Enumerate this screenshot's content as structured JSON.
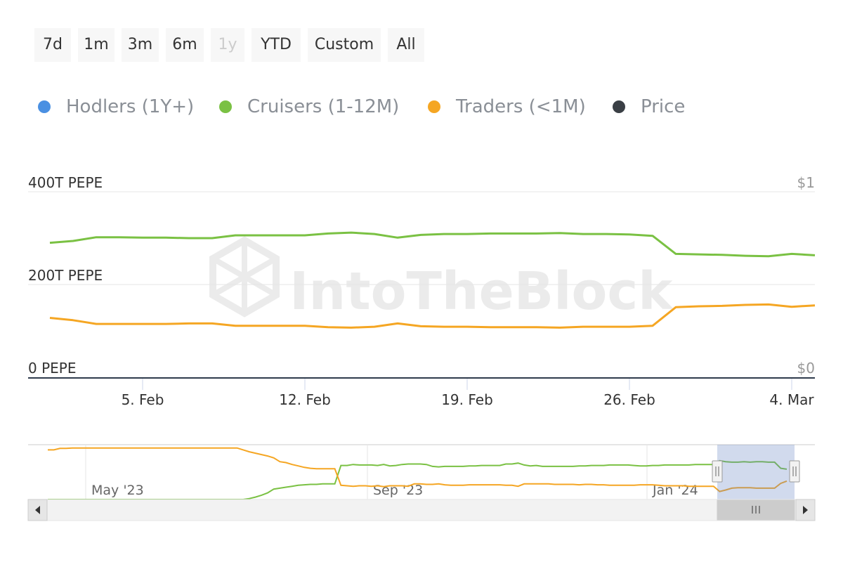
{
  "range_selector": {
    "buttons": [
      {
        "label": "7d",
        "disabled": false
      },
      {
        "label": "1m",
        "disabled": false
      },
      {
        "label": "3m",
        "disabled": false
      },
      {
        "label": "6m",
        "disabled": false
      },
      {
        "label": "1y",
        "disabled": true
      },
      {
        "label": "YTD",
        "disabled": false
      },
      {
        "label": "Custom",
        "disabled": false
      },
      {
        "label": "All",
        "disabled": false
      }
    ]
  },
  "legend": {
    "items": [
      {
        "label": "Hodlers (1Y+)",
        "color": "#4a90e2"
      },
      {
        "label": "Cruisers (1-12M)",
        "color": "#7ac143"
      },
      {
        "label": "Traders (<1M)",
        "color": "#f5a623"
      },
      {
        "label": "Price",
        "color": "#3a3f45"
      }
    ]
  },
  "watermark": "IntoTheBlock",
  "chart_data": {
    "type": "line",
    "x_ticks": [
      "5. Feb",
      "12. Feb",
      "19. Feb",
      "26. Feb",
      "4. Mar"
    ],
    "y_left_ticks": [
      "0 PEPE",
      "200T PEPE",
      "400T PEPE"
    ],
    "y_left_range": [
      0,
      400
    ],
    "y_right_ticks": [
      "$0",
      "$1"
    ],
    "grid": true,
    "series": [
      {
        "name": "Cruisers (1-12M)",
        "color": "#7ac143",
        "x": [
          "2024-02-01",
          "2024-02-02",
          "2024-02-03",
          "2024-02-04",
          "2024-02-05",
          "2024-02-06",
          "2024-02-07",
          "2024-02-08",
          "2024-02-09",
          "2024-02-10",
          "2024-02-11",
          "2024-02-12",
          "2024-02-13",
          "2024-02-14",
          "2024-02-15",
          "2024-02-16",
          "2024-02-17",
          "2024-02-18",
          "2024-02-19",
          "2024-02-20",
          "2024-02-21",
          "2024-02-22",
          "2024-02-23",
          "2024-02-24",
          "2024-02-25",
          "2024-02-26",
          "2024-02-27",
          "2024-02-28",
          "2024-02-29",
          "2024-03-01",
          "2024-03-02",
          "2024-03-03",
          "2024-03-04",
          "2024-03-05"
        ],
        "values": [
          290,
          294,
          302,
          302,
          301,
          301,
          300,
          300,
          306,
          306,
          306,
          306,
          310,
          312,
          309,
          301,
          307,
          309,
          309,
          310,
          310,
          310,
          311,
          309,
          309,
          308,
          305,
          266,
          265,
          264,
          262,
          261,
          266,
          263
        ]
      },
      {
        "name": "Traders (<1M)",
        "color": "#f5a623",
        "x": [
          "2024-02-01",
          "2024-02-02",
          "2024-02-03",
          "2024-02-04",
          "2024-02-05",
          "2024-02-06",
          "2024-02-07",
          "2024-02-08",
          "2024-02-09",
          "2024-02-10",
          "2024-02-11",
          "2024-02-12",
          "2024-02-13",
          "2024-02-14",
          "2024-02-15",
          "2024-02-16",
          "2024-02-17",
          "2024-02-18",
          "2024-02-19",
          "2024-02-20",
          "2024-02-21",
          "2024-02-22",
          "2024-02-23",
          "2024-02-24",
          "2024-02-25",
          "2024-02-26",
          "2024-02-27",
          "2024-02-28",
          "2024-02-29",
          "2024-03-01",
          "2024-03-02",
          "2024-03-03",
          "2024-03-04",
          "2024-03-05"
        ],
        "values": [
          128,
          123,
          115,
          115,
          115,
          115,
          116,
          116,
          111,
          111,
          111,
          111,
          108,
          107,
          109,
          116,
          110,
          109,
          109,
          108,
          108,
          108,
          107,
          109,
          109,
          109,
          111,
          151,
          153,
          154,
          156,
          157,
          152,
          155
        ]
      }
    ]
  },
  "navigator": {
    "labels": [
      "May '23",
      "Sep '23",
      "Jan '24"
    ],
    "series": [
      {
        "name": "Cruisers (1-12M)",
        "color": "#7ac143",
        "values": [
          0,
          0,
          0,
          0,
          0,
          0,
          0,
          0,
          0,
          0,
          0,
          0,
          0,
          0,
          0,
          0,
          0,
          0,
          0,
          0,
          0,
          0,
          0,
          0,
          0,
          0,
          0,
          0,
          0,
          0,
          0,
          0,
          0,
          2,
          5,
          9,
          14,
          22,
          24,
          26,
          28,
          30,
          31,
          32,
          32,
          33,
          33,
          33,
          72,
          72,
          74,
          73,
          73,
          73,
          72,
          74,
          71,
          72,
          74,
          75,
          75,
          75,
          74,
          70,
          69,
          70,
          70,
          70,
          70,
          71,
          71,
          72,
          72,
          72,
          72,
          75,
          75,
          77,
          73,
          71,
          72,
          70,
          70,
          70,
          70,
          70,
          70,
          71,
          71,
          72,
          72,
          72,
          73,
          73,
          73,
          73,
          72,
          71,
          71,
          72,
          72,
          73,
          73,
          73,
          73,
          73,
          74,
          74,
          74,
          74,
          82,
          80,
          79,
          79,
          80,
          79,
          80,
          80,
          79,
          79,
          66,
          64
        ]
      },
      {
        "name": "Traders (<1M)",
        "color": "#f5a623",
        "values": [
          105,
          105,
          108,
          108,
          109,
          109,
          109,
          109,
          109,
          109,
          109,
          109,
          109,
          109,
          109,
          109,
          109,
          109,
          109,
          109,
          109,
          109,
          109,
          109,
          109,
          109,
          109,
          109,
          109,
          109,
          109,
          109,
          105,
          101,
          98,
          95,
          92,
          88,
          80,
          78,
          74,
          71,
          68,
          66,
          65,
          65,
          65,
          65,
          30,
          29,
          28,
          29,
          29,
          28,
          29,
          27,
          29,
          29,
          29,
          28,
          33,
          33,
          32,
          32,
          33,
          31,
          30,
          30,
          30,
          31,
          31,
          31,
          31,
          31,
          31,
          30,
          30,
          28,
          33,
          33,
          33,
          33,
          33,
          32,
          32,
          32,
          32,
          31,
          32,
          32,
          31,
          31,
          30,
          30,
          30,
          30,
          30,
          31,
          31,
          31,
          30,
          29,
          29,
          29,
          29,
          28,
          28,
          28,
          28,
          28,
          17,
          20,
          24,
          25,
          25,
          25,
          24,
          24,
          24,
          24,
          34,
          39
        ]
      }
    ]
  }
}
